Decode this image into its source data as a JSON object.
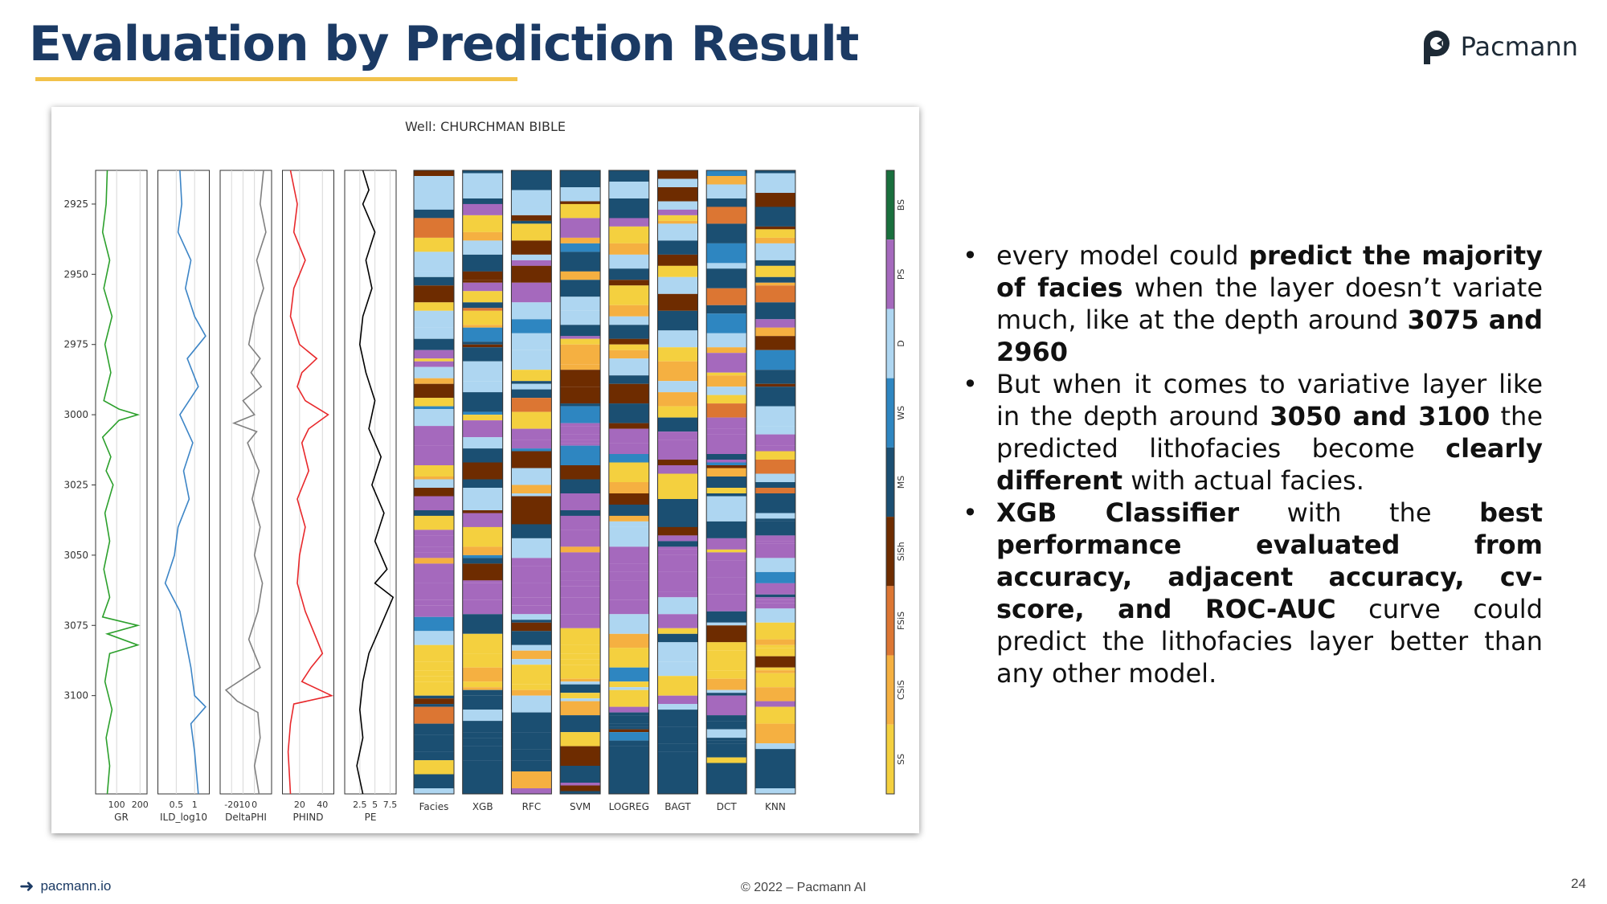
{
  "slide": {
    "title": "Evaluation by Prediction Result",
    "brand": "Pacmann",
    "footer_link": "pacmann.io",
    "footer_copyright": "© 2022 – Pacmann AI",
    "page_number": "24"
  },
  "bullets": [
    [
      {
        "t": "every model could ",
        "b": false
      },
      {
        "t": "predict the majority of facies",
        "b": true
      },
      {
        "t": " when the layer doesn’t variate much, like at the depth around ",
        "b": false
      },
      {
        "t": "3075 and 2960",
        "b": true
      }
    ],
    [
      {
        "t": "But when it comes to variative layer like in the depth around ",
        "b": false
      },
      {
        "t": "3050 and 3100",
        "b": true
      },
      {
        "t": " the predicted lithofacies become ",
        "b": false
      },
      {
        "t": "clearly different",
        "b": true
      },
      {
        "t": " with actual facies.",
        "b": false
      }
    ],
    [
      {
        "t": "XGB Classifier",
        "b": true
      },
      {
        "t": " with the ",
        "b": false
      },
      {
        "t": "best performance evaluated from accuracy, adjacent accuracy, cv-score, and ROC-AUC",
        "b": true
      },
      {
        "t": " curve could predict the lithofacies layer better than any other model.",
        "b": false
      }
    ]
  ],
  "chart_data": {
    "type": "well-log",
    "title": "Well: CHURCHMAN BIBLE",
    "depth_range": [
      2913,
      3135
    ],
    "depth_ticks": [
      2925,
      2950,
      2975,
      3000,
      3025,
      3050,
      3075,
      3100
    ],
    "log_tracks": [
      {
        "name": "GR",
        "color": "#2ca02c",
        "xlim": [
          10,
          230
        ],
        "ticks": [
          100,
          200
        ],
        "points": [
          [
            2913,
            60
          ],
          [
            2925,
            55
          ],
          [
            2935,
            40
          ],
          [
            2945,
            70
          ],
          [
            2955,
            45
          ],
          [
            2965,
            80
          ],
          [
            2975,
            50
          ],
          [
            2985,
            75
          ],
          [
            2995,
            45
          ],
          [
            2998,
            110
          ],
          [
            3000,
            190
          ],
          [
            3002,
            110
          ],
          [
            3008,
            40
          ],
          [
            3015,
            75
          ],
          [
            3020,
            55
          ],
          [
            3025,
            85
          ],
          [
            3035,
            50
          ],
          [
            3045,
            70
          ],
          [
            3055,
            45
          ],
          [
            3065,
            70
          ],
          [
            3072,
            40
          ],
          [
            3075,
            190
          ],
          [
            3078,
            60
          ],
          [
            3082,
            190
          ],
          [
            3085,
            70
          ],
          [
            3095,
            50
          ],
          [
            3105,
            80
          ],
          [
            3115,
            55
          ],
          [
            3125,
            70
          ],
          [
            3135,
            60
          ]
        ]
      },
      {
        "name": "ILD_log10",
        "color": "#3d85c6",
        "xlim": [
          0,
          1.4
        ],
        "ticks": [
          0.5,
          1.0
        ],
        "points": [
          [
            2913,
            0.6
          ],
          [
            2925,
            0.65
          ],
          [
            2935,
            0.55
          ],
          [
            2945,
            0.9
          ],
          [
            2955,
            0.75
          ],
          [
            2965,
            1.0
          ],
          [
            2972,
            1.3
          ],
          [
            2980,
            0.8
          ],
          [
            2990,
            1.1
          ],
          [
            3000,
            0.6
          ],
          [
            3010,
            0.95
          ],
          [
            3020,
            0.7
          ],
          [
            3030,
            0.85
          ],
          [
            3040,
            0.55
          ],
          [
            3050,
            0.45
          ],
          [
            3060,
            0.2
          ],
          [
            3070,
            0.6
          ],
          [
            3080,
            0.75
          ],
          [
            3090,
            0.9
          ],
          [
            3100,
            1.0
          ],
          [
            3104,
            1.3
          ],
          [
            3110,
            0.9
          ],
          [
            3120,
            1.0
          ],
          [
            3135,
            1.1
          ]
        ]
      },
      {
        "name": "DeltaPHI",
        "color": "#808080",
        "xlim": [
          -30,
          15
        ],
        "ticks": [
          -20,
          -10,
          0
        ],
        "points": [
          [
            2913,
            8
          ],
          [
            2925,
            5
          ],
          [
            2935,
            10
          ],
          [
            2945,
            2
          ],
          [
            2955,
            8
          ],
          [
            2965,
            0
          ],
          [
            2975,
            -5
          ],
          [
            2980,
            5
          ],
          [
            2985,
            -3
          ],
          [
            2990,
            6
          ],
          [
            2995,
            -10
          ],
          [
            3000,
            0
          ],
          [
            3003,
            -18
          ],
          [
            3006,
            2
          ],
          [
            3010,
            -6
          ],
          [
            3020,
            4
          ],
          [
            3030,
            -2
          ],
          [
            3040,
            5
          ],
          [
            3050,
            0
          ],
          [
            3060,
            7
          ],
          [
            3070,
            3
          ],
          [
            3080,
            -5
          ],
          [
            3090,
            5
          ],
          [
            3098,
            -25
          ],
          [
            3102,
            -15
          ],
          [
            3106,
            3
          ],
          [
            3115,
            5
          ],
          [
            3125,
            0
          ],
          [
            3135,
            4
          ]
        ]
      },
      {
        "name": "PHIND",
        "color": "#e8282b",
        "xlim": [
          5,
          50
        ],
        "ticks": [
          20,
          40
        ],
        "points": [
          [
            2913,
            12
          ],
          [
            2925,
            18
          ],
          [
            2935,
            15
          ],
          [
            2945,
            25
          ],
          [
            2955,
            15
          ],
          [
            2965,
            12
          ],
          [
            2975,
            20
          ],
          [
            2980,
            35
          ],
          [
            2985,
            22
          ],
          [
            2990,
            18
          ],
          [
            2995,
            25
          ],
          [
            3000,
            45
          ],
          [
            3005,
            28
          ],
          [
            3010,
            22
          ],
          [
            3020,
            28
          ],
          [
            3030,
            18
          ],
          [
            3040,
            25
          ],
          [
            3050,
            20
          ],
          [
            3060,
            18
          ],
          [
            3070,
            25
          ],
          [
            3080,
            35
          ],
          [
            3085,
            40
          ],
          [
            3090,
            30
          ],
          [
            3095,
            22
          ],
          [
            3100,
            48
          ],
          [
            3103,
            15
          ],
          [
            3110,
            12
          ],
          [
            3120,
            10
          ],
          [
            3135,
            12
          ]
        ]
      },
      {
        "name": "PE",
        "color": "#000000",
        "xlim": [
          0,
          8.5
        ],
        "ticks": [
          2.5,
          5.0,
          7.5
        ],
        "points": [
          [
            2913,
            3
          ],
          [
            2920,
            4
          ],
          [
            2925,
            3
          ],
          [
            2935,
            5
          ],
          [
            2945,
            3.5
          ],
          [
            2955,
            4.5
          ],
          [
            2965,
            3
          ],
          [
            2975,
            2.5
          ],
          [
            2985,
            3.5
          ],
          [
            2995,
            5
          ],
          [
            3005,
            4
          ],
          [
            3015,
            6
          ],
          [
            3025,
            4.5
          ],
          [
            3035,
            6.5
          ],
          [
            3045,
            5
          ],
          [
            3055,
            7
          ],
          [
            3060,
            5
          ],
          [
            3065,
            8
          ],
          [
            3075,
            6
          ],
          [
            3085,
            4
          ],
          [
            3095,
            3
          ],
          [
            3105,
            2.5
          ],
          [
            3115,
            3
          ],
          [
            3125,
            2
          ],
          [
            3135,
            3
          ]
        ]
      }
    ],
    "facies_tracks": [
      "Facies",
      "XGB",
      "RFC",
      "SVM",
      "LOGREG",
      "BAGT",
      "DCT",
      "KNN"
    ],
    "facies_classes": [
      {
        "name": "SS",
        "color": "#f4d03f"
      },
      {
        "name": "CSiS",
        "color": "#f5b041"
      },
      {
        "name": "FSiS",
        "color": "#dc7633"
      },
      {
        "name": "SiSh",
        "color": "#6e2c00"
      },
      {
        "name": "MS",
        "color": "#1b4f72"
      },
      {
        "name": "WS",
        "color": "#2e86c1"
      },
      {
        "name": "D",
        "color": "#aed6f1"
      },
      {
        "name": "PS",
        "color": "#a569bd"
      },
      {
        "name": "BS",
        "color": "#196f3d"
      }
    ]
  }
}
